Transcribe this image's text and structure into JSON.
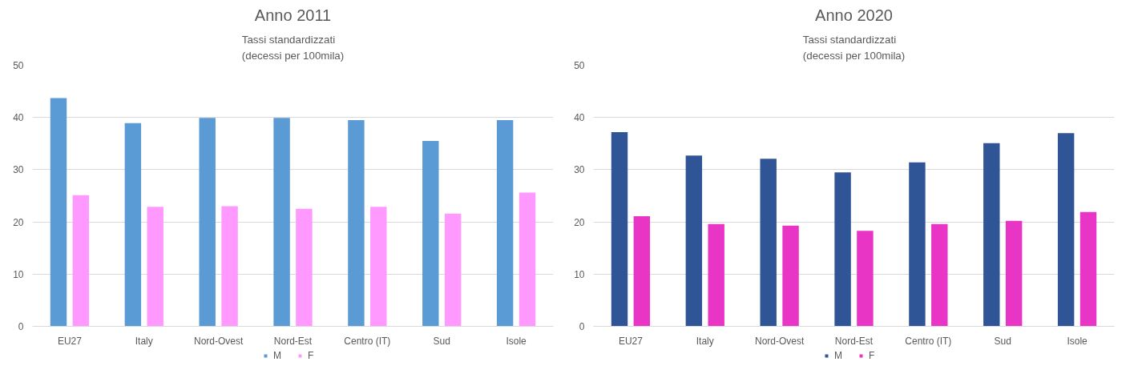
{
  "chart_data": [
    {
      "type": "bar",
      "title": "Anno 2011",
      "subtitle": "Tassi standardizzati\n(decessi per 100mila)",
      "categories": [
        "EU27",
        "Italy",
        "Nord-Ovest",
        "Nord-Est",
        "Centro (IT)",
        "Sud",
        "Isole"
      ],
      "series": [
        {
          "name": "M",
          "color": "#5b9bd5",
          "values": [
            43.7,
            38.9,
            39.9,
            39.9,
            39.5,
            35.5,
            39.5
          ]
        },
        {
          "name": "F",
          "color": "#ff99ff",
          "values": [
            25.1,
            22.9,
            23.0,
            22.5,
            22.9,
            21.6,
            25.6
          ]
        }
      ],
      "ylim": [
        0,
        50
      ],
      "yticks": [
        0,
        10,
        20,
        30,
        40,
        50
      ],
      "grid": "y",
      "legend": "bottom"
    },
    {
      "type": "bar",
      "title": "Anno 2020",
      "subtitle": "Tassi standardizzati\n(decessi per 100mila)",
      "categories": [
        "EU27",
        "Italy",
        "Nord-Ovest",
        "Nord-Est",
        "Centro (IT)",
        "Sud",
        "Isole"
      ],
      "series": [
        {
          "name": "M",
          "color": "#2f5597",
          "values": [
            37.2,
            32.7,
            32.1,
            29.5,
            31.4,
            35.1,
            37.0
          ]
        },
        {
          "name": "F",
          "color": "#e935c5",
          "values": [
            21.1,
            19.6,
            19.3,
            18.3,
            19.6,
            20.2,
            21.9
          ]
        }
      ],
      "ylim": [
        0,
        50
      ],
      "yticks": [
        0,
        10,
        20,
        30,
        40,
        50
      ],
      "grid": "y",
      "legend": "bottom"
    }
  ]
}
